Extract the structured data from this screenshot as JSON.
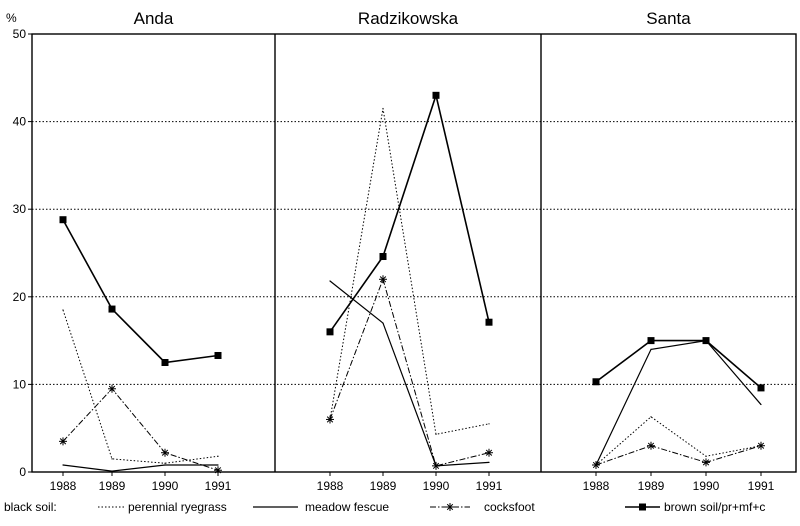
{
  "chart_data": {
    "type": "line",
    "unit_label": "%",
    "ylim": [
      0,
      50
    ],
    "yticks": [
      0,
      10,
      20,
      30,
      40,
      50
    ],
    "grid": "horizontal dotted at 10, 20, 30, 40",
    "legend_prefix": "black soil:",
    "legend_placement": "bottom",
    "x": [
      "1988",
      "1989",
      "1990",
      "1991"
    ],
    "series_styles": [
      {
        "name": "perennial ryegrass",
        "style": "dotted"
      },
      {
        "name": "meadow fescue",
        "style": "solid"
      },
      {
        "name": "cocksfoot",
        "style": "dash-dot with star markers"
      },
      {
        "name": "brown soil/pr+mf+c",
        "style": "solid with square markers"
      }
    ],
    "panels": [
      {
        "title": "Anda",
        "series": [
          {
            "name": "perennial ryegrass",
            "values": [
              18.5,
              1.5,
              1.0,
              1.8
            ]
          },
          {
            "name": "meadow fescue",
            "values": [
              0.8,
              0.1,
              0.8,
              0.8
            ]
          },
          {
            "name": "cocksfoot",
            "values": [
              3.5,
              9.5,
              2.2,
              0.2
            ]
          },
          {
            "name": "brown soil/pr+mf+c",
            "values": [
              28.8,
              18.6,
              12.5,
              13.3
            ]
          }
        ]
      },
      {
        "title": "Radzikowska",
        "series": [
          {
            "name": "perennial ryegrass",
            "values": [
              6.0,
              41.5,
              4.3,
              5.5
            ]
          },
          {
            "name": "meadow fescue",
            "values": [
              21.8,
              17.0,
              0.7,
              1.1
            ]
          },
          {
            "name": "cocksfoot",
            "values": [
              6.0,
              22.0,
              0.7,
              2.2
            ]
          },
          {
            "name": "brown soil/pr+mf+c",
            "values": [
              16.0,
              24.6,
              43.0,
              17.1
            ]
          }
        ]
      },
      {
        "title": "Santa",
        "series": [
          {
            "name": "perennial ryegrass",
            "values": [
              0.8,
              6.3,
              1.8,
              3.0
            ]
          },
          {
            "name": "meadow fescue",
            "values": [
              0.8,
              14.0,
              15.0,
              7.7
            ]
          },
          {
            "name": "cocksfoot",
            "values": [
              0.8,
              3.0,
              1.1,
              3.0
            ]
          },
          {
            "name": "brown soil/pr+mf+c",
            "values": [
              10.3,
              15.0,
              15.0,
              9.6
            ]
          }
        ]
      }
    ]
  }
}
